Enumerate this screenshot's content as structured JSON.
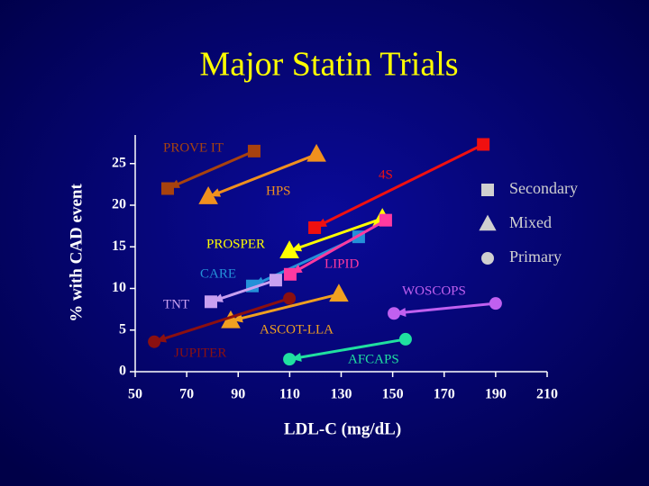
{
  "chart_data": {
    "type": "scatter",
    "title": "Major Statin Trials",
    "x_label": "LDL-C (mg/dL)",
    "y_label": "% with CAD event",
    "xlim": [
      50,
      210
    ],
    "ylim": [
      0,
      28
    ],
    "xticks": [
      50,
      70,
      90,
      110,
      130,
      150,
      170,
      190,
      210
    ],
    "yticks": [
      0,
      5,
      10,
      15,
      20,
      25
    ],
    "arrows": true,
    "legend": [
      {
        "label": "Secondary",
        "marker": "square"
      },
      {
        "label": "Mixed",
        "marker": "triangle"
      },
      {
        "label": "Primary",
        "marker": "circle"
      }
    ],
    "legend_color": "#d0d0d0",
    "series": [
      {
        "name": "PROVE IT",
        "color": "#a8420e",
        "marker": "square",
        "x": [
          96.2,
          62.6
        ],
        "values": [
          26.5,
          22.0
        ]
      },
      {
        "name": "HPS",
        "color": "#f0901e",
        "marker": "triangle",
        "x": [
          120.4,
          78.4
        ],
        "values": [
          26.1,
          21.0
        ]
      },
      {
        "name": "4S",
        "color": "#f01010",
        "marker": "square",
        "x": [
          185.2,
          119.7
        ],
        "values": [
          27.3,
          17.3
        ]
      },
      {
        "name": "PROSPER",
        "color": "#ffff00",
        "marker": "triangle",
        "x": [
          146,
          109.9
        ],
        "values": [
          18.4,
          14.5
        ]
      },
      {
        "name": "CARE",
        "color": "#2490d8",
        "marker": "square",
        "x": [
          136.8,
          95.5
        ],
        "values": [
          16.2,
          10.3
        ]
      },
      {
        "name": "LIPID",
        "color": "#ff3aa0",
        "marker": "square",
        "x": [
          147.3,
          110.2
        ],
        "values": [
          18.2,
          11.7
        ]
      },
      {
        "name": "TNT",
        "color": "#c8a0f0",
        "marker": "square",
        "x": [
          104.6,
          79.4
        ],
        "values": [
          11.0,
          8.4
        ]
      },
      {
        "name": "ASCOT-LLA",
        "color": "#f0a020",
        "marker": "triangle",
        "x": [
          129.1,
          87.1
        ],
        "values": [
          9.3,
          6.1
        ]
      },
      {
        "name": "JUPITER",
        "color": "#8b1010",
        "marker": "circle",
        "x": [
          109.9,
          57.4
        ],
        "values": [
          8.8,
          3.6
        ]
      },
      {
        "name": "WOSCOPS",
        "color": "#c060f0",
        "marker": "circle",
        "x": [
          190.0,
          150.5
        ],
        "values": [
          8.2,
          7.0
        ]
      },
      {
        "name": "AFCAPS",
        "color": "#20e0a0",
        "marker": "circle",
        "x": [
          155.0,
          109.9
        ],
        "values": [
          3.9,
          1.5
        ]
      }
    ]
  }
}
